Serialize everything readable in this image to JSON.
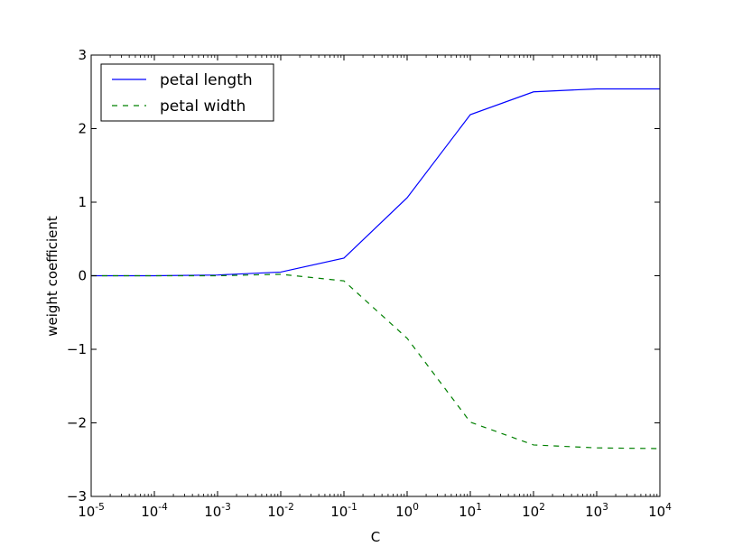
{
  "chart_data": {
    "type": "line",
    "title": "",
    "xlabel": "C",
    "ylabel": "weight coefficient",
    "xscale": "log",
    "xlim": [
      1e-05,
      10000
    ],
    "ylim": [
      -3,
      3
    ],
    "x": [
      1e-05,
      0.0001,
      0.001,
      0.01,
      0.1,
      1,
      10,
      100,
      1000,
      10000
    ],
    "xticks": {
      "base": "10",
      "exponents": [
        "-5",
        "-4",
        "-3",
        "-2",
        "-1",
        "0",
        "1",
        "2",
        "3",
        "4"
      ],
      "values": [
        1e-05,
        0.0001,
        0.001,
        0.01,
        0.1,
        1,
        10,
        100,
        1000,
        10000
      ]
    },
    "yticks": {
      "values": [
        -3,
        -2,
        -1,
        0,
        1,
        2,
        3
      ],
      "labels": [
        "−3",
        "−2",
        "−1",
        "0",
        "1",
        "2",
        "3"
      ]
    },
    "series": [
      {
        "name": "petal length",
        "color": "#0000ff",
        "linestyle": "solid",
        "values": [
          0.0,
          0.0,
          0.01,
          0.05,
          0.24,
          1.06,
          2.19,
          2.5,
          2.54,
          2.54
        ]
      },
      {
        "name": "petal width",
        "color": "#008000",
        "linestyle": "dashed",
        "values": [
          0.0,
          0.0,
          0.0,
          0.02,
          -0.07,
          -0.85,
          -1.99,
          -2.3,
          -2.34,
          -2.35
        ]
      }
    ],
    "legend": {
      "position": "top-left"
    },
    "grid": false
  }
}
